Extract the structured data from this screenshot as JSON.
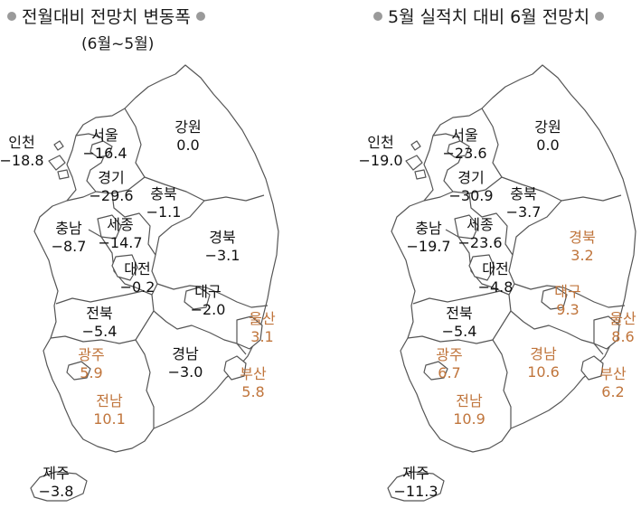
{
  "left_panel": {
    "title": "전월대비 전망치 변동폭",
    "subtitle": "(6월~5월)",
    "regions": [
      {
        "name": "인천",
        "value": "−18.8",
        "positive": false
      },
      {
        "name": "서울",
        "value": "−16.4",
        "positive": false
      },
      {
        "name": "강원",
        "value": "0.0",
        "positive": false
      },
      {
        "name": "경기",
        "value": "−29.6",
        "positive": false
      },
      {
        "name": "충북",
        "value": "−1.1",
        "positive": false
      },
      {
        "name": "충남",
        "value": "−8.7",
        "positive": false
      },
      {
        "name": "세종",
        "value": "−14.7",
        "positive": false
      },
      {
        "name": "경북",
        "value": "−3.1",
        "positive": false
      },
      {
        "name": "대전",
        "value": "−0.2",
        "positive": false
      },
      {
        "name": "대구",
        "value": "−2.0",
        "positive": false
      },
      {
        "name": "전북",
        "value": "−5.4",
        "positive": false
      },
      {
        "name": "울산",
        "value": "3.1",
        "positive": true
      },
      {
        "name": "광주",
        "value": "5.9",
        "positive": true
      },
      {
        "name": "경남",
        "value": "−3.0",
        "positive": false
      },
      {
        "name": "부산",
        "value": "5.8",
        "positive": true
      },
      {
        "name": "전남",
        "value": "10.1",
        "positive": true
      },
      {
        "name": "제주",
        "value": "−3.8",
        "positive": false
      }
    ]
  },
  "right_panel": {
    "title": "5월 실적치 대비 6월 전망치",
    "regions": [
      {
        "name": "인천",
        "value": "−19.0",
        "positive": false
      },
      {
        "name": "서울",
        "value": "−23.6",
        "positive": false
      },
      {
        "name": "강원",
        "value": "0.0",
        "positive": false
      },
      {
        "name": "경기",
        "value": "−30.9",
        "positive": false
      },
      {
        "name": "충북",
        "value": "−3.7",
        "positive": false
      },
      {
        "name": "충남",
        "value": "−19.7",
        "positive": false
      },
      {
        "name": "세종",
        "value": "−23.6",
        "positive": false
      },
      {
        "name": "경북",
        "value": "3.2",
        "positive": true
      },
      {
        "name": "대전",
        "value": "−4.8",
        "positive": false
      },
      {
        "name": "대구",
        "value": "9.3",
        "positive": true
      },
      {
        "name": "전북",
        "value": "−5.4",
        "positive": false
      },
      {
        "name": "울산",
        "value": "8.6",
        "positive": true
      },
      {
        "name": "광주",
        "value": "6.7",
        "positive": true
      },
      {
        "name": "경남",
        "value": "10.6",
        "positive": true
      },
      {
        "name": "부산",
        "value": "6.2",
        "positive": true
      },
      {
        "name": "전남",
        "value": "10.9",
        "positive": true
      },
      {
        "name": "제주",
        "value": "−11.3",
        "positive": false
      }
    ]
  },
  "colors": {
    "negative_or_zero": "#111111",
    "positive": "#c0753c",
    "border": "#555555",
    "bullet": "#9a9a9a"
  }
}
